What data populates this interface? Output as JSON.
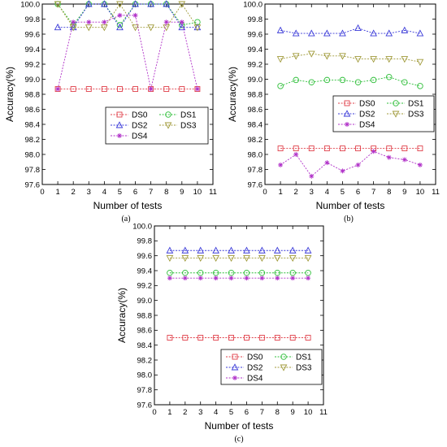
{
  "chart_data": [
    {
      "type": "line",
      "panel_label": "(a)",
      "xlabel": "Number of tests",
      "ylabel": "Accuracy(%)",
      "xlim": [
        0,
        11
      ],
      "ylim": [
        97.6,
        100.0
      ],
      "xticks": [
        "0",
        "1",
        "2",
        "3",
        "4",
        "5",
        "6",
        "7",
        "8",
        "9",
        "10",
        "11"
      ],
      "yticks": [
        "97.6",
        "97.8",
        "98.0",
        "98.2",
        "98.4",
        "98.6",
        "98.8",
        "99.0",
        "99.2",
        "99.4",
        "99.6",
        "99.8",
        "100.0"
      ],
      "legend_position": "bottom-right",
      "x": [
        1,
        2,
        3,
        4,
        5,
        6,
        7,
        8,
        9,
        10
      ],
      "series": [
        {
          "name": "DS0",
          "values": [
            98.87,
            98.87,
            98.87,
            98.87,
            98.87,
            98.87,
            98.87,
            98.87,
            98.87,
            98.87
          ]
        },
        {
          "name": "DS1",
          "values": [
            100.0,
            99.72,
            100.0,
            100.0,
            99.72,
            100.0,
            100.0,
            100.0,
            99.72,
            99.76
          ]
        },
        {
          "name": "DS2",
          "values": [
            99.69,
            99.69,
            100.0,
            100.0,
            99.69,
            100.0,
            100.0,
            100.0,
            99.69,
            99.69
          ]
        },
        {
          "name": "DS3",
          "values": [
            100.0,
            99.69,
            99.69,
            99.69,
            100.0,
            99.69,
            99.69,
            99.69,
            100.0,
            99.69
          ]
        },
        {
          "name": "DS4",
          "values": [
            98.87,
            99.76,
            99.76,
            99.76,
            99.85,
            99.85,
            98.87,
            99.76,
            99.76,
            98.87
          ]
        }
      ]
    },
    {
      "type": "line",
      "panel_label": "(b)",
      "xlabel": "Number of tests",
      "ylabel": "Accuracy(%)",
      "xlim": [
        0,
        11
      ],
      "ylim": [
        97.6,
        100.0
      ],
      "xticks": [
        "0",
        "1",
        "2",
        "3",
        "4",
        "5",
        "6",
        "7",
        "8",
        "9",
        "10",
        "11"
      ],
      "yticks": [
        "97.6",
        "97.8",
        "98.0",
        "98.2",
        "98.4",
        "98.6",
        "98.8",
        "99.0",
        "99.2",
        "99.4",
        "99.6",
        "99.8",
        "100.0"
      ],
      "legend_position": "center-right",
      "x": [
        1,
        2,
        3,
        4,
        5,
        6,
        7,
        8,
        9,
        10
      ],
      "series": [
        {
          "name": "DS0",
          "values": [
            98.08,
            98.08,
            98.08,
            98.08,
            98.08,
            98.08,
            98.08,
            98.08,
            98.08,
            98.08
          ]
        },
        {
          "name": "DS1",
          "values": [
            98.91,
            98.99,
            98.96,
            98.99,
            98.99,
            98.96,
            98.99,
            99.03,
            98.96,
            98.91
          ]
        },
        {
          "name": "DS2",
          "values": [
            99.65,
            99.61,
            99.61,
            99.61,
            99.61,
            99.68,
            99.61,
            99.61,
            99.65,
            99.61
          ]
        },
        {
          "name": "DS3",
          "values": [
            99.27,
            99.31,
            99.34,
            99.31,
            99.31,
            99.27,
            99.27,
            99.27,
            99.27,
            99.23
          ]
        },
        {
          "name": "DS4",
          "values": [
            97.86,
            98.0,
            97.71,
            97.89,
            97.78,
            97.86,
            98.04,
            97.96,
            97.93,
            97.86
          ]
        }
      ]
    },
    {
      "type": "line",
      "panel_label": "(c)",
      "xlabel": "Number of tests",
      "ylabel": "Accuracy(%)",
      "xlim": [
        0,
        11
      ],
      "ylim": [
        97.6,
        100.0
      ],
      "xticks": [
        "0",
        "1",
        "2",
        "3",
        "4",
        "5",
        "6",
        "7",
        "8",
        "9",
        "10",
        "11"
      ],
      "yticks": [
        "97.6",
        "97.8",
        "98.0",
        "98.2",
        "98.4",
        "98.6",
        "98.8",
        "99.0",
        "99.2",
        "99.4",
        "99.6",
        "99.8",
        "100.0"
      ],
      "legend_position": "bottom-right",
      "x": [
        1,
        2,
        3,
        4,
        5,
        6,
        7,
        8,
        9,
        10
      ],
      "series": [
        {
          "name": "DS0",
          "values": [
            98.5,
            98.5,
            98.5,
            98.5,
            98.5,
            98.5,
            98.5,
            98.5,
            98.5,
            98.5
          ]
        },
        {
          "name": "DS1",
          "values": [
            99.37,
            99.37,
            99.37,
            99.37,
            99.37,
            99.37,
            99.37,
            99.37,
            99.37,
            99.37
          ]
        },
        {
          "name": "DS2",
          "values": [
            99.67,
            99.67,
            99.67,
            99.67,
            99.67,
            99.67,
            99.67,
            99.67,
            99.67,
            99.67
          ]
        },
        {
          "name": "DS3",
          "values": [
            99.57,
            99.57,
            99.57,
            99.57,
            99.57,
            99.57,
            99.57,
            99.57,
            99.57,
            99.57
          ]
        },
        {
          "name": "DS4",
          "values": [
            99.3,
            99.3,
            99.3,
            99.3,
            99.3,
            99.3,
            99.3,
            99.3,
            99.3,
            99.3
          ]
        }
      ]
    }
  ],
  "styles": {
    "DS0": {
      "color": "#e0404a",
      "marker": "square"
    },
    "DS1": {
      "color": "#2fbf3a",
      "marker": "circle"
    },
    "DS2": {
      "color": "#3a3ad8",
      "marker": "triangle-up"
    },
    "DS3": {
      "color": "#a09a3a",
      "marker": "triangle-down"
    },
    "DS4": {
      "color": "#b030c8",
      "marker": "asterisk"
    }
  }
}
